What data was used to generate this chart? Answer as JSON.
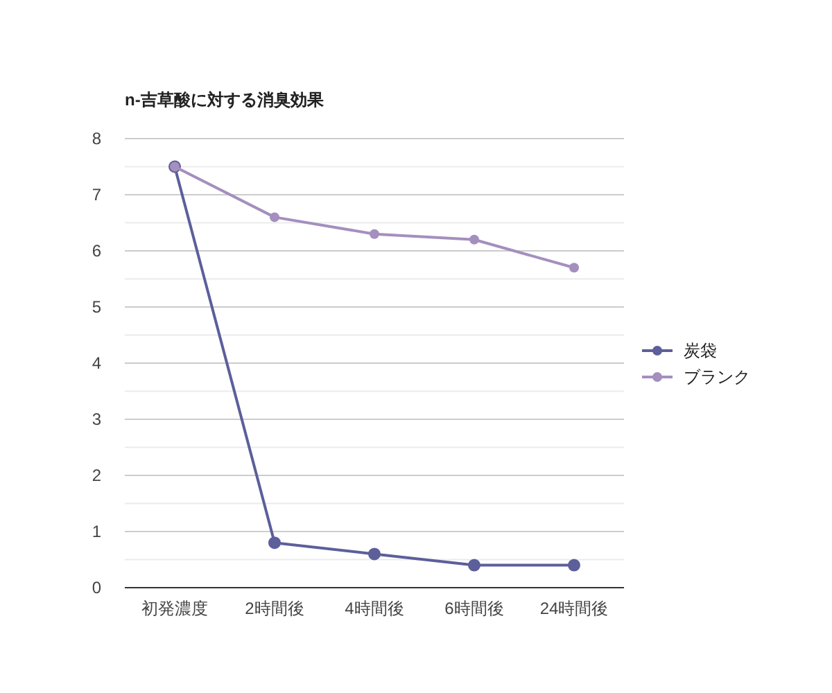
{
  "chart_data": {
    "type": "line",
    "title": "n-吉草酸に対する消臭効果",
    "categories": [
      "初発濃度",
      "2時間後",
      "4時間後",
      "6時間後",
      "24時間後"
    ],
    "series": [
      {
        "name": "炭袋",
        "color": "#5c5f9a",
        "values": [
          7.5,
          0.8,
          0.6,
          0.4,
          0.4
        ]
      },
      {
        "name": "ブランク",
        "color": "#a48fbf",
        "values": [
          7.5,
          6.6,
          6.3,
          6.2,
          5.7
        ]
      }
    ],
    "ylim": [
      0,
      8
    ],
    "yticks": [
      0,
      {
        "value": 0.5,
        "label": null
      },
      1,
      {
        "value": 1.5,
        "label": null
      },
      2,
      {
        "value": 2.5,
        "label": null
      },
      3,
      {
        "value": 3.5,
        "label": null
      },
      4,
      {
        "value": 4.5,
        "label": null
      },
      5,
      {
        "value": 5.5,
        "label": null
      },
      6,
      {
        "value": 6.5,
        "label": null
      },
      7,
      {
        "value": 7.5,
        "label": null
      },
      8
    ],
    "grid": "y",
    "legend": "right",
    "marker": "circle",
    "line_style": "solid"
  }
}
